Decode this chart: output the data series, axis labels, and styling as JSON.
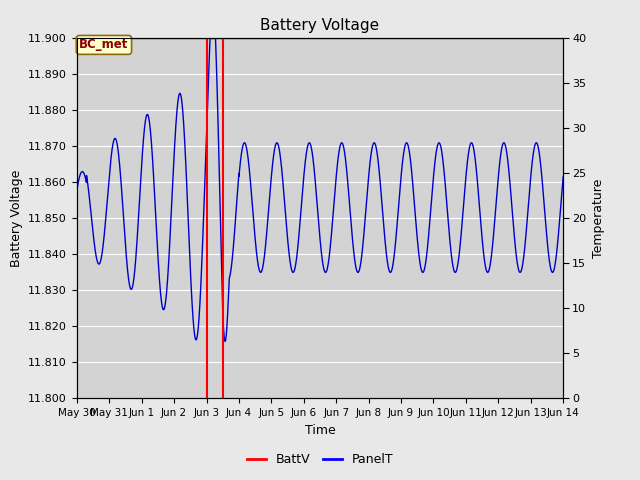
{
  "title": "Battery Voltage",
  "xlabel": "Time",
  "ylabel_left": "Battery Voltage",
  "ylabel_right": "Temperature",
  "ylim_left": [
    11.8,
    11.9
  ],
  "ylim_right": [
    0,
    40
  ],
  "xlim": [
    0,
    15
  ],
  "x_tick_labels": [
    "May 30",
    "May 31",
    "Jun 1",
    "Jun 2",
    "Jun 3",
    "Jun 4",
    "Jun 5",
    "Jun 6",
    "Jun 7",
    "Jun 8",
    "Jun 9",
    "Jun 10",
    "Jun 11",
    "Jun 12",
    "Jun 13",
    "Jun 14"
  ],
  "x_tick_positions": [
    0,
    1,
    2,
    3,
    4,
    5,
    6,
    7,
    8,
    9,
    10,
    11,
    12,
    13,
    14,
    15
  ],
  "y_left_ticks": [
    11.8,
    11.81,
    11.82,
    11.83,
    11.84,
    11.85,
    11.86,
    11.87,
    11.88,
    11.89,
    11.9
  ],
  "y_right_ticks": [
    0,
    5,
    10,
    15,
    20,
    25,
    30,
    35,
    40
  ],
  "red_vlines": [
    4.0,
    4.5
  ],
  "red_hline": 11.9,
  "legend_items": [
    "BattV",
    "PanelT"
  ],
  "legend_colors": [
    "#ff0000",
    "#0000ff"
  ],
  "bc_met_label": "BC_met",
  "bc_met_bg": "#ffffcc",
  "bc_met_fg": "#8B0000",
  "bg_color": "#e8e8e8",
  "plot_bg_color": "#d3d3d3",
  "grid_color": "#ffffff",
  "blue_line_color": "#0000cc",
  "red_line_color": "#ff0000",
  "title_fontsize": 11,
  "figsize": [
    6.4,
    4.8
  ],
  "dpi": 100
}
